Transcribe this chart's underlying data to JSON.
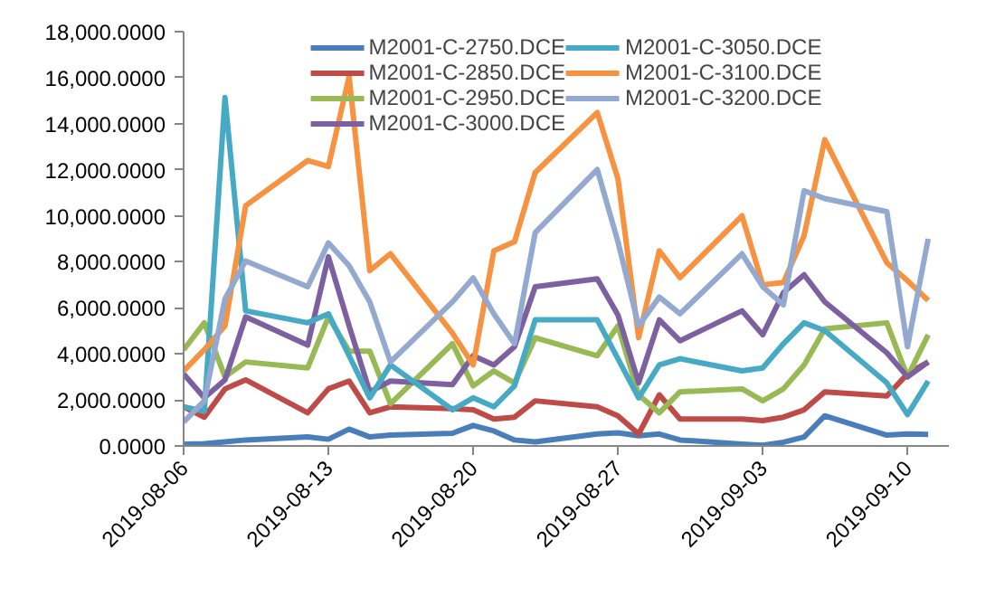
{
  "chart_data": {
    "type": "line",
    "legend": "top",
    "grid": false,
    "marker": "none",
    "line_style": "solid",
    "x": [
      "2019-08-06",
      "2019-08-07",
      "2019-08-08",
      "2019-08-09",
      "2019-08-12",
      "2019-08-13",
      "2019-08-14",
      "2019-08-15",
      "2019-08-16",
      "2019-08-19",
      "2019-08-20",
      "2019-08-21",
      "2019-08-22",
      "2019-08-23",
      "2019-08-26",
      "2019-08-27",
      "2019-08-28",
      "2019-08-29",
      "2019-08-30",
      "2019-09-02",
      "2019-09-03",
      "2019-09-04",
      "2019-09-05",
      "2019-09-06",
      "2019-09-09",
      "2019-09-10",
      "2019-09-11"
    ],
    "xlim": [
      "2019-08-06",
      "2019-09-12"
    ],
    "xticks": [
      "2019-08-06",
      "2019-08-13",
      "2019-08-20",
      "2019-08-27",
      "2019-09-03",
      "2019-09-10"
    ],
    "ylim": [
      0,
      18000
    ],
    "yticks": [
      {
        "value": 0,
        "label": "0.0000"
      },
      {
        "value": 2000,
        "label": "2,000.0000"
      },
      {
        "value": 4000,
        "label": "4,000.0000"
      },
      {
        "value": 6000,
        "label": "6,000.0000"
      },
      {
        "value": 8000,
        "label": "8,000.0000"
      },
      {
        "value": 10000,
        "label": "10,000.0000"
      },
      {
        "value": 12000,
        "label": "12,000.0000"
      },
      {
        "value": 14000,
        "label": "14,000.0000"
      },
      {
        "value": 16000,
        "label": "16,000.0000"
      },
      {
        "value": 18000,
        "label": "18,000.0000"
      }
    ],
    "series": [
      {
        "name": "M2001-C-2750.DCE",
        "color": "#4a7ebb",
        "values": [
          80,
          100,
          180,
          260,
          390,
          290,
          730,
          390,
          470,
          550,
          890,
          650,
          260,
          180,
          520,
          570,
          440,
          520,
          260,
          80,
          30,
          160,
          390,
          1310,
          470,
          520,
          500
        ]
      },
      {
        "name": "M2001-C-2850.DCE",
        "color": "#be4b48",
        "values": [
          1700,
          1250,
          2480,
          2870,
          1440,
          2480,
          2820,
          1440,
          1700,
          1620,
          1570,
          1170,
          1250,
          1960,
          1700,
          1310,
          520,
          2220,
          1170,
          1170,
          1100,
          1250,
          1570,
          2350,
          2170,
          3130,
          3650
        ]
      },
      {
        "name": "M2001-C-2950.DCE",
        "color": "#98b954",
        "values": [
          4180,
          5350,
          3000,
          3650,
          3390,
          5610,
          4120,
          4120,
          1830,
          4440,
          2610,
          3260,
          2740,
          4700,
          3920,
          5220,
          2220,
          1440,
          2350,
          2480,
          1960,
          2480,
          3520,
          5090,
          5350,
          3000,
          4830
        ]
      },
      {
        "name": "M2001-C-3000.DCE",
        "color": "#7d60a0",
        "values": [
          3130,
          2090,
          2870,
          5610,
          4380,
          8220,
          5220,
          2350,
          2820,
          2660,
          3920,
          3520,
          4310,
          6920,
          7260,
          5690,
          2740,
          5480,
          4570,
          5870,
          4830,
          6660,
          7440,
          6260,
          4050,
          3000,
          3650
        ]
      },
      {
        "name": "M2001-C-3050.DCE",
        "color": "#46aac5",
        "values": [
          1700,
          1510,
          15140,
          5870,
          5350,
          5740,
          3920,
          2090,
          3520,
          1570,
          2090,
          1700,
          2610,
          5480,
          5480,
          3790,
          2090,
          3520,
          3790,
          3260,
          3390,
          4440,
          5350,
          5010,
          2740,
          1360,
          2820
        ]
      },
      {
        "name": "M2001-C-3100.DCE",
        "color": "#f69240",
        "values": [
          3260,
          4180,
          5220,
          10440,
          12400,
          12140,
          16050,
          7620,
          8350,
          4900,
          3520,
          8480,
          8870,
          11880,
          14490,
          11610,
          4700,
          8480,
          7310,
          10000,
          7000,
          7100,
          9140,
          13310,
          7960,
          7180,
          6320
        ]
      },
      {
        "name": "M2001-C-3200.DCE",
        "color": "#93a9cf",
        "values": [
          1040,
          1960,
          6390,
          8040,
          6920,
          8820,
          7830,
          6260,
          3650,
          6260,
          7300,
          5740,
          4440,
          9270,
          12010,
          8870,
          5220,
          6470,
          5740,
          8350,
          6920,
          6130,
          11090,
          10750,
          10180,
          4310,
          9000
        ]
      }
    ]
  }
}
